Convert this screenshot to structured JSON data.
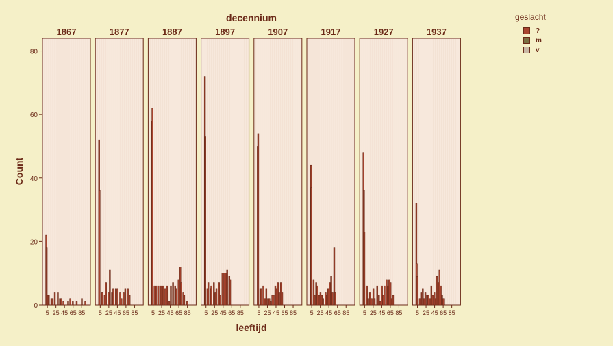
{
  "colors": {
    "background": "#f5f0c8",
    "panel_fill": "#f7e8dc",
    "axis": "#6b2a18",
    "text": "#6b2a18"
  },
  "legend": {
    "title": "geslacht",
    "items": [
      {
        "label": "?",
        "color": "#a9452f"
      },
      {
        "label": "m",
        "color": "#7a6f42"
      },
      {
        "label": "v",
        "color": "#c9b8a6"
      }
    ]
  },
  "chart_data": {
    "type": "bar",
    "title": "decennium",
    "xlabel": "leeftijd",
    "ylabel": "Count",
    "ylim": [
      0,
      84
    ],
    "yticks": [
      0,
      20,
      40,
      60,
      80
    ],
    "xticks": [
      5,
      25,
      45,
      65,
      85
    ],
    "panels": [
      {
        "label": "1867",
        "bars": [
          {
            "x": 1,
            "y": 22
          },
          {
            "x": 2,
            "y": 18
          },
          {
            "x": 5,
            "y": 3
          },
          {
            "x": 7,
            "y": 3
          },
          {
            "x": 13,
            "y": 2
          },
          {
            "x": 16,
            "y": 2
          },
          {
            "x": 21,
            "y": 4
          },
          {
            "x": 28,
            "y": 4
          },
          {
            "x": 33,
            "y": 2
          },
          {
            "x": 36,
            "y": 2
          },
          {
            "x": 41,
            "y": 1
          },
          {
            "x": 52,
            "y": 1
          },
          {
            "x": 57,
            "y": 2
          },
          {
            "x": 63,
            "y": 1
          },
          {
            "x": 72,
            "y": 1
          },
          {
            "x": 84,
            "y": 2
          },
          {
            "x": 92,
            "y": 1
          }
        ]
      },
      {
        "label": "1877",
        "bars": [
          {
            "x": 1,
            "y": 52
          },
          {
            "x": 2,
            "y": 36
          },
          {
            "x": 7,
            "y": 4
          },
          {
            "x": 9,
            "y": 4
          },
          {
            "x": 14,
            "y": 3
          },
          {
            "x": 17,
            "y": 7
          },
          {
            "x": 23,
            "y": 4
          },
          {
            "x": 26,
            "y": 11
          },
          {
            "x": 31,
            "y": 4
          },
          {
            "x": 34,
            "y": 5
          },
          {
            "x": 40,
            "y": 5
          },
          {
            "x": 44,
            "y": 5
          },
          {
            "x": 50,
            "y": 4
          },
          {
            "x": 53,
            "y": 2
          },
          {
            "x": 58,
            "y": 4
          },
          {
            "x": 62,
            "y": 5
          },
          {
            "x": 68,
            "y": 5
          },
          {
            "x": 72,
            "y": 3
          }
        ]
      },
      {
        "label": "1887",
        "bars": [
          {
            "x": 1,
            "y": 58
          },
          {
            "x": 2,
            "y": 62
          },
          {
            "x": 7,
            "y": 6
          },
          {
            "x": 11,
            "y": 6
          },
          {
            "x": 16,
            "y": 6
          },
          {
            "x": 22,
            "y": 6
          },
          {
            "x": 27,
            "y": 6
          },
          {
            "x": 32,
            "y": 5
          },
          {
            "x": 36,
            "y": 6
          },
          {
            "x": 41,
            "y": 1
          },
          {
            "x": 45,
            "y": 6
          },
          {
            "x": 50,
            "y": 7
          },
          {
            "x": 55,
            "y": 6
          },
          {
            "x": 58,
            "y": 5
          },
          {
            "x": 63,
            "y": 8
          },
          {
            "x": 67,
            "y": 12
          },
          {
            "x": 69,
            "y": 7
          },
          {
            "x": 74,
            "y": 4
          },
          {
            "x": 76,
            "y": 3
          },
          {
            "x": 83,
            "y": 1
          }
        ]
      },
      {
        "label": "1897",
        "bars": [
          {
            "x": 1,
            "y": 72
          },
          {
            "x": 2,
            "y": 53
          },
          {
            "x": 7,
            "y": 5
          },
          {
            "x": 9,
            "y": 7
          },
          {
            "x": 14,
            "y": 5
          },
          {
            "x": 16,
            "y": 6
          },
          {
            "x": 22,
            "y": 7
          },
          {
            "x": 26,
            "y": 4
          },
          {
            "x": 28,
            "y": 5
          },
          {
            "x": 34,
            "y": 7
          },
          {
            "x": 37,
            "y": 3
          },
          {
            "x": 42,
            "y": 10
          },
          {
            "x": 46,
            "y": 10
          },
          {
            "x": 50,
            "y": 10
          },
          {
            "x": 53,
            "y": 11
          },
          {
            "x": 58,
            "y": 9
          },
          {
            "x": 60,
            "y": 8
          }
        ]
      },
      {
        "label": "1907",
        "bars": [
          {
            "x": 1,
            "y": 50
          },
          {
            "x": 2,
            "y": 54
          },
          {
            "x": 7,
            "y": 5
          },
          {
            "x": 9,
            "y": 5
          },
          {
            "x": 14,
            "y": 6
          },
          {
            "x": 18,
            "y": 2
          },
          {
            "x": 21,
            "y": 5
          },
          {
            "x": 25,
            "y": 2
          },
          {
            "x": 28,
            "y": 2
          },
          {
            "x": 31,
            "y": 1
          },
          {
            "x": 35,
            "y": 3
          },
          {
            "x": 38,
            "y": 3
          },
          {
            "x": 42,
            "y": 6
          },
          {
            "x": 45,
            "y": 5
          },
          {
            "x": 48,
            "y": 7
          },
          {
            "x": 51,
            "y": 4
          },
          {
            "x": 55,
            "y": 7
          },
          {
            "x": 58,
            "y": 4
          }
        ]
      },
      {
        "label": "1917",
        "bars": [
          {
            "x": 1,
            "y": 20
          },
          {
            "x": 2,
            "y": 44
          },
          {
            "x": 3,
            "y": 37
          },
          {
            "x": 8,
            "y": 8
          },
          {
            "x": 10,
            "y": 3
          },
          {
            "x": 14,
            "y": 7
          },
          {
            "x": 17,
            "y": 6
          },
          {
            "x": 21,
            "y": 3
          },
          {
            "x": 24,
            "y": 4
          },
          {
            "x": 27,
            "y": 3
          },
          {
            "x": 30,
            "y": 2
          },
          {
            "x": 36,
            "y": 4
          },
          {
            "x": 39,
            "y": 3
          },
          {
            "x": 42,
            "y": 5
          },
          {
            "x": 46,
            "y": 7
          },
          {
            "x": 49,
            "y": 9
          },
          {
            "x": 52,
            "y": 4
          },
          {
            "x": 56,
            "y": 18
          },
          {
            "x": 58,
            "y": 4
          }
        ]
      },
      {
        "label": "1927",
        "bars": [
          {
            "x": 1,
            "y": 48
          },
          {
            "x": 2,
            "y": 36
          },
          {
            "x": 3,
            "y": 23
          },
          {
            "x": 9,
            "y": 6
          },
          {
            "x": 12,
            "y": 2
          },
          {
            "x": 16,
            "y": 4
          },
          {
            "x": 20,
            "y": 2
          },
          {
            "x": 24,
            "y": 5
          },
          {
            "x": 27,
            "y": 2
          },
          {
            "x": 33,
            "y": 6
          },
          {
            "x": 37,
            "y": 3
          },
          {
            "x": 40,
            "y": 1
          },
          {
            "x": 44,
            "y": 6
          },
          {
            "x": 47,
            "y": 3
          },
          {
            "x": 50,
            "y": 6
          },
          {
            "x": 55,
            "y": 8
          },
          {
            "x": 58,
            "y": 6
          },
          {
            "x": 61,
            "y": 8
          },
          {
            "x": 64,
            "y": 7
          },
          {
            "x": 67,
            "y": 2
          },
          {
            "x": 70,
            "y": 3
          }
        ]
      },
      {
        "label": "1937",
        "bars": [
          {
            "x": 1,
            "y": 32
          },
          {
            "x": 2,
            "y": 13
          },
          {
            "x": 3,
            "y": 9
          },
          {
            "x": 9,
            "y": 2
          },
          {
            "x": 12,
            "y": 4
          },
          {
            "x": 16,
            "y": 5
          },
          {
            "x": 19,
            "y": 2
          },
          {
            "x": 22,
            "y": 4
          },
          {
            "x": 26,
            "y": 3
          },
          {
            "x": 29,
            "y": 3
          },
          {
            "x": 33,
            "y": 2
          },
          {
            "x": 36,
            "y": 6
          },
          {
            "x": 39,
            "y": 3
          },
          {
            "x": 43,
            "y": 4
          },
          {
            "x": 46,
            "y": 2
          },
          {
            "x": 49,
            "y": 9
          },
          {
            "x": 52,
            "y": 7
          },
          {
            "x": 55,
            "y": 11
          },
          {
            "x": 58,
            "y": 6
          },
          {
            "x": 61,
            "y": 3
          },
          {
            "x": 64,
            "y": 2
          }
        ]
      }
    ]
  }
}
